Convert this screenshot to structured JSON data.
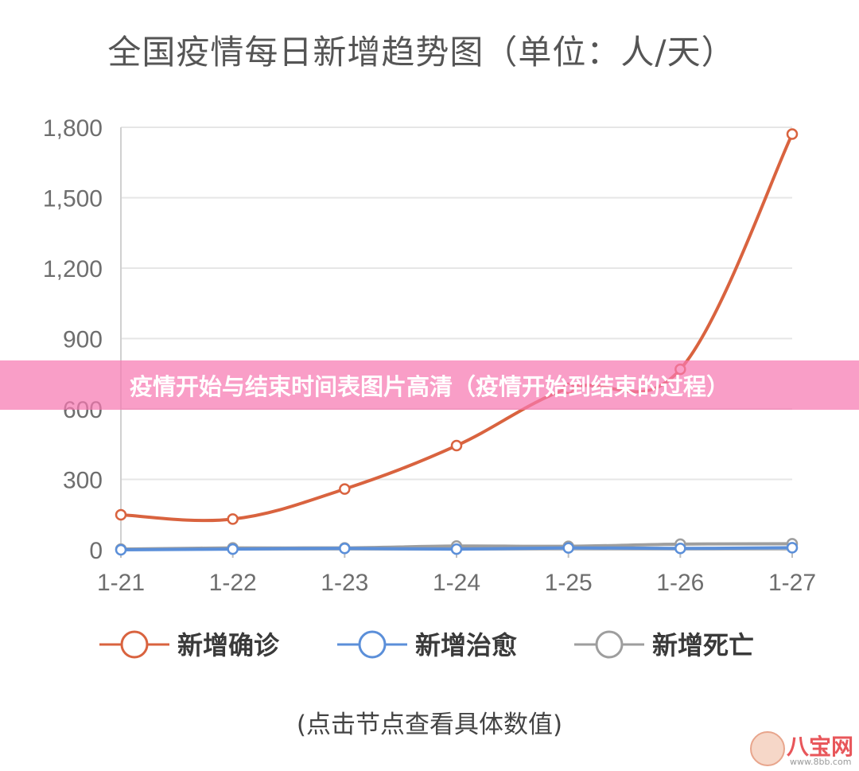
{
  "banner_text": "疫情开始与结束时间表图片高清（疫情开始到结束的过程）",
  "hint_text": "(点击节点查看具体数值)",
  "watermark": {
    "text": "八宝网",
    "url": "www.8bb.com"
  },
  "chart_data": {
    "type": "line",
    "title": "全国疫情每日新增趋势图（单位：人/天）",
    "xlabel": "",
    "ylabel": "",
    "categories": [
      "1-21",
      "1-22",
      "1-23",
      "1-24",
      "1-25",
      "1-26",
      "1-27"
    ],
    "ylim": [
      0,
      1800
    ],
    "yticks": [
      0,
      300,
      600,
      900,
      1200,
      1500,
      1800
    ],
    "ytick_labels": [
      "0",
      "300",
      "600",
      "900",
      "1,200",
      "1,500",
      "1,800"
    ],
    "grid": true,
    "legend_position": "bottom",
    "series": [
      {
        "name": "新增确诊",
        "color": "#d9633f",
        "values": [
          149,
          131,
          259,
          444,
          688,
          769,
          1771
        ]
      },
      {
        "name": "新增治愈",
        "color": "#5b8fd9",
        "values": [
          0,
          3,
          6,
          3,
          8,
          6,
          9
        ]
      },
      {
        "name": "新增死亡",
        "color": "#9e9e9e",
        "values": [
          3,
          8,
          8,
          16,
          15,
          24,
          26
        ]
      }
    ]
  }
}
